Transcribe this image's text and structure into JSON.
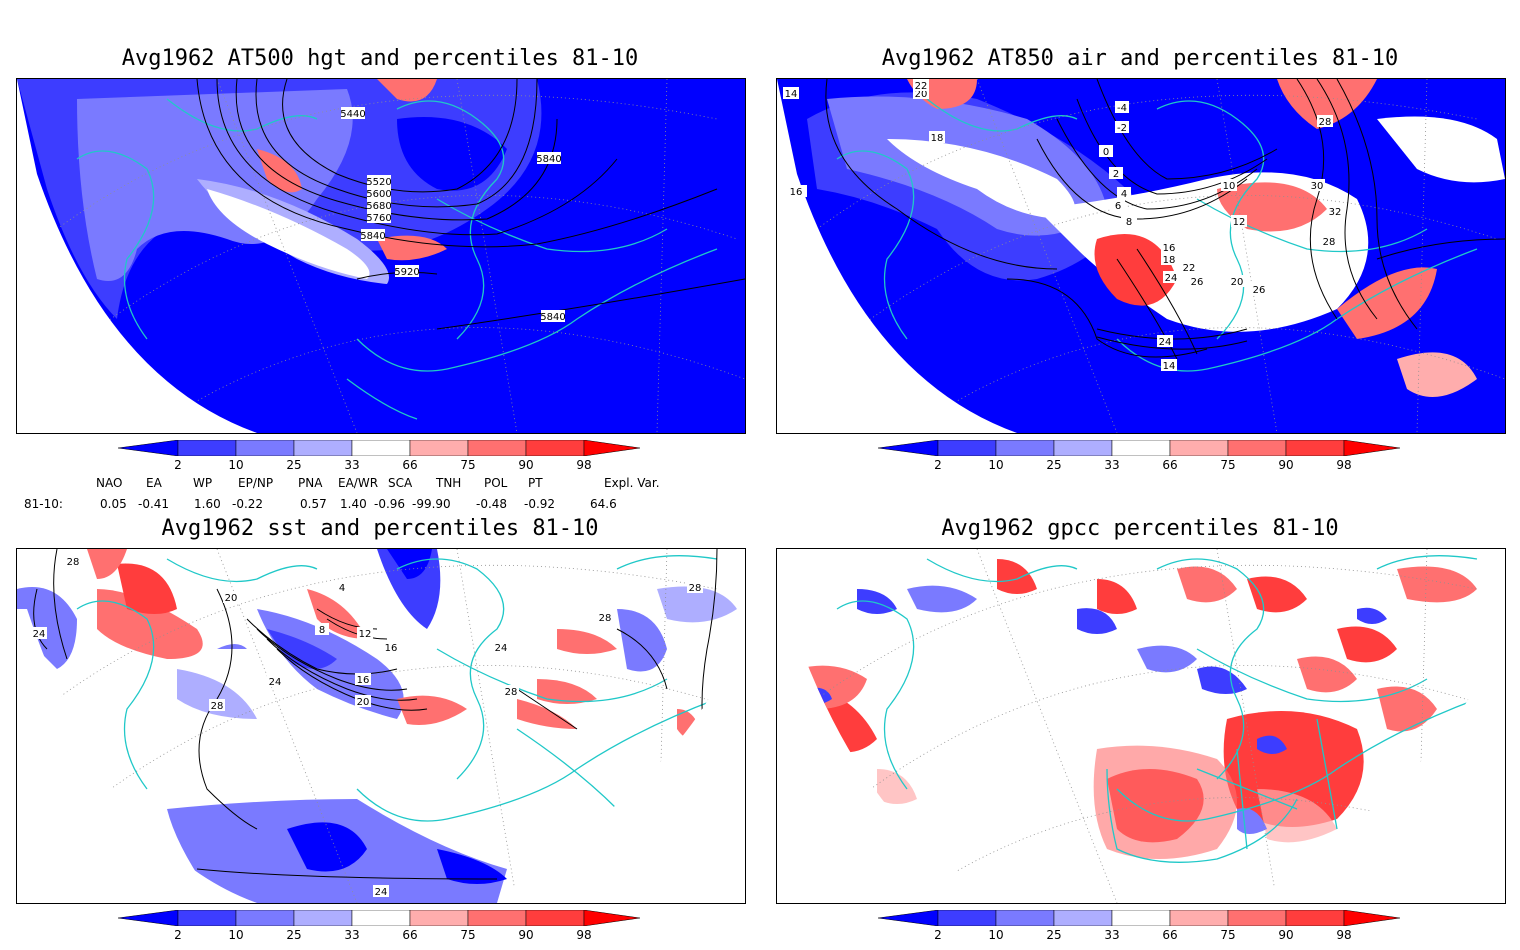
{
  "panels": [
    {
      "title": "Avg1962 AT500 hgt and percentiles 81-10",
      "contour_labels": [
        "5440",
        "5520",
        "5600",
        "5680",
        "5760",
        "5840",
        "5840",
        "5920",
        "5840"
      ]
    },
    {
      "title": "Avg1962 AT850 air and percentiles 81-10",
      "contour_labels": [
        "14",
        "16",
        "18",
        "20",
        "22",
        "24",
        "26",
        "28",
        "30",
        "32",
        "-4",
        "-2",
        "0",
        "2",
        "4",
        "6",
        "8",
        "10",
        "12",
        "14",
        "16",
        "18",
        "20",
        "22",
        "24",
        "26",
        "28"
      ]
    },
    {
      "title": "Avg1962 sst and percentiles 81-10",
      "contour_labels": [
        "28",
        "24",
        "28",
        "20",
        "24",
        "16",
        "20",
        "4",
        "8",
        "12",
        "16",
        "28",
        "24",
        "28",
        "24",
        "28"
      ]
    },
    {
      "title": "Avg1962 gpcc percentiles 81-10",
      "contour_labels": []
    }
  ],
  "colorbar": {
    "ticks": [
      "2",
      "10",
      "25",
      "33",
      "66",
      "75",
      "90",
      "98"
    ],
    "colors": {
      "blue_dark": "#0000ff",
      "blue_mid": "#3d3dff",
      "blue_med": "#7a7aff",
      "blue_light": "#aeaeff",
      "white": "#ffffff",
      "red_light": "#ffadad",
      "red_med": "#ff7070",
      "red_mid": "#ff3d3d",
      "red_dark": "#ff0000"
    }
  },
  "indices": {
    "headers": [
      "NAO",
      "EA",
      "WP",
      "EP/NP",
      "PNA",
      "EA/WR",
      "SCA",
      "TNH",
      "POL",
      "PT",
      "Expl. Var."
    ],
    "row_label": "81-10:",
    "values": [
      "0.05",
      "-0.41",
      "1.60",
      "-0.22",
      "0.57",
      "1.40",
      "-0.96",
      "-99.90",
      "-0.48",
      "-0.92",
      "64.6"
    ]
  },
  "map_colors": {
    "coast": "#20c8c8",
    "contour": "#000000",
    "grid": "#909090"
  }
}
